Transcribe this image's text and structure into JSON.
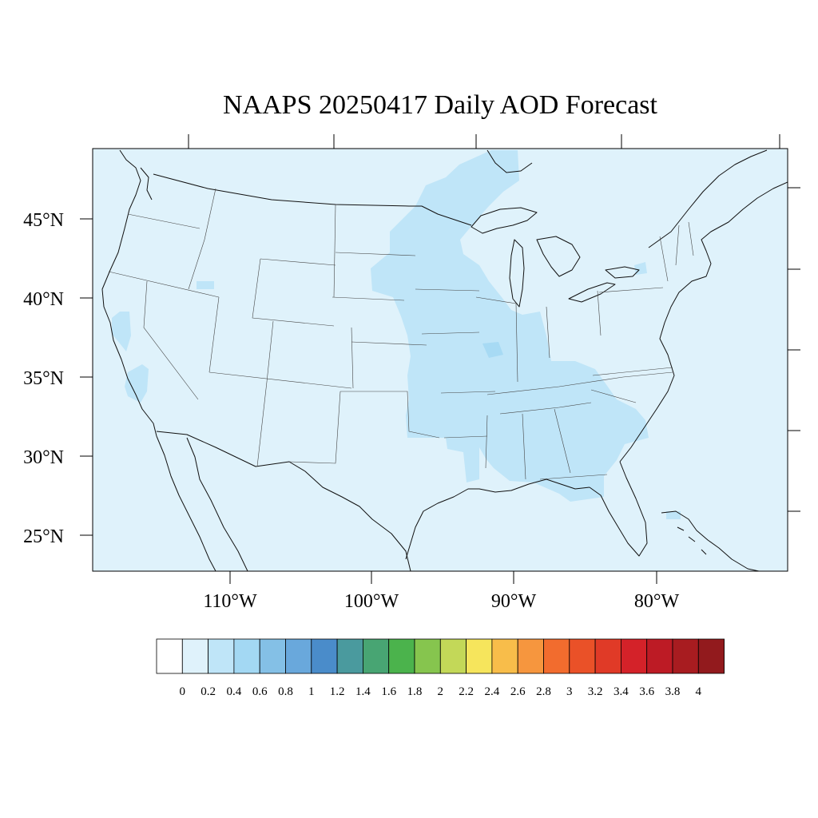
{
  "title": "NAAPS 20250417 Daily AOD Forecast",
  "map": {
    "background_color": "#dff2fb",
    "plume_color_low": "#bfe5f8",
    "plume_color_mid": "#a7daf4",
    "lat_labels": [
      "45°N",
      "40°N",
      "35°N",
      "30°N",
      "25°N"
    ],
    "lon_labels": [
      "110°W",
      "100°W",
      "90°W",
      "80°W"
    ]
  },
  "colorbar": {
    "colors": [
      "#ffffff",
      "#dff2fb",
      "#bfe5f8",
      "#a3d8f3",
      "#84c0e6",
      "#69a8dc",
      "#4a8cca",
      "#4a9a9e",
      "#48a573",
      "#4bb34c",
      "#86c54e",
      "#c3d858",
      "#f6e55c",
      "#f8bd4a",
      "#f6963e",
      "#f26c2e",
      "#ea5128",
      "#e03a27",
      "#d42229",
      "#bd1b25",
      "#a81c20",
      "#921a1d"
    ],
    "labels": [
      "0",
      "0.2",
      "0.4",
      "0.6",
      "0.8",
      "1",
      "1.2",
      "1.4",
      "1.6",
      "1.8",
      "2",
      "2.2",
      "2.4",
      "2.6",
      "2.8",
      "3",
      "3.2",
      "3.4",
      "3.6",
      "3.8",
      "4"
    ]
  }
}
